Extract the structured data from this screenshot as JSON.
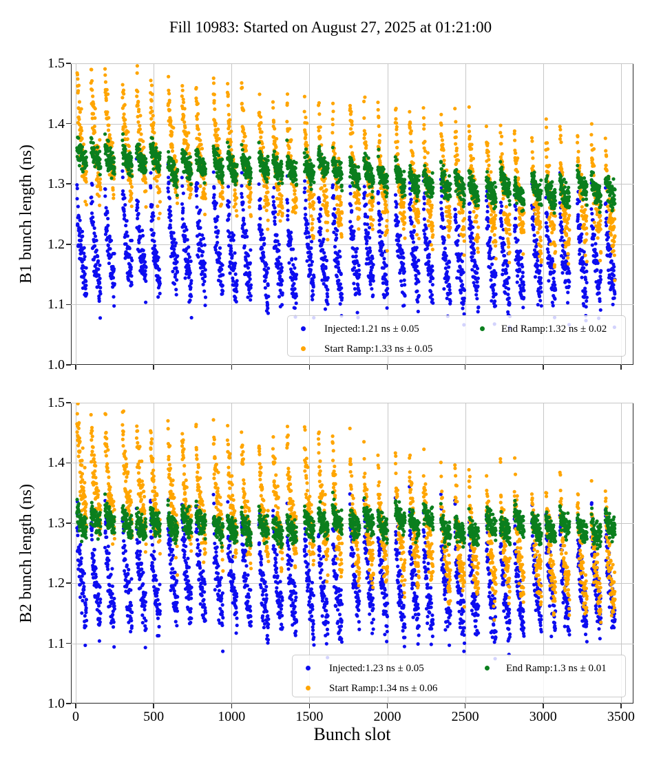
{
  "title": "Fill 10983: Started on August 27, 2025 at 01:21:00",
  "fill": {
    "number": "10983",
    "started": "August 27, 2025 at 01:21:00"
  },
  "chart_data": {
    "type": "scatter",
    "xlabel": "Bunch slot",
    "grid": true,
    "grid_color": "#c6c6c6",
    "spine_color": "#262626",
    "marker": {
      "shape": "dot",
      "radius_px": 2.6
    },
    "bunch_pattern": {
      "first_slot": 8,
      "trains": 12,
      "train_period": 292,
      "batches_per_train": 3,
      "bunches_per_batch": 62,
      "batch_gap": 28,
      "last_slot": 3462
    },
    "plots": [
      {
        "ylabel": "B1 bunch length (ns)",
        "xlim": [
          -31,
          3580
        ],
        "ylim": [
          1.0,
          1.5
        ],
        "xticks": [
          0,
          500,
          1000,
          1500,
          2000,
          2500,
          3000,
          3500
        ],
        "xticklabels": [
          "0",
          "500",
          "1000",
          "1500",
          "2000",
          "2500",
          "3000",
          "3500"
        ],
        "show_xticklabels": false,
        "yticks": [
          1.0,
          1.1,
          1.2,
          1.3,
          1.4,
          1.5
        ],
        "yticklabels": [
          "1.0",
          "1.1",
          "1.2",
          "1.3",
          "1.4",
          "1.5"
        ],
        "legend_position": "lower right",
        "series": [
          {
            "key": "injected",
            "label": "Injected:1.21 ns ± 0.05",
            "color": "#0d0df0",
            "mean_ns": 1.21,
            "std_ns": 0.05,
            "gen": {
              "start": 1.225,
              "end": 1.2,
              "droop": 0.15,
              "sigma": 0.023,
              "seed": 101
            }
          },
          {
            "key": "start_ramp",
            "label": "Start Ramp:1.33 ns ± 0.05",
            "color": "#ffa500",
            "mean_ns": 1.33,
            "std_ns": 0.05,
            "gen": {
              "start": 1.405,
              "end": 1.29,
              "droop": 0.17,
              "sigma": 0.022,
              "seed": 102
            }
          },
          {
            "key": "end_ramp",
            "label": "End Ramp:1.32 ns ± 0.02",
            "color": "#0b7f1e",
            "mean_ns": 1.32,
            "std_ns": 0.02,
            "gen": {
              "start": 1.352,
              "end": 1.297,
              "droop": 0.03,
              "sigma": 0.01,
              "seed": 103
            }
          }
        ]
      },
      {
        "ylabel": "B2 bunch length (ns)",
        "xlim": [
          -31,
          3580
        ],
        "ylim": [
          1.0,
          1.5
        ],
        "xticks": [
          0,
          500,
          1000,
          1500,
          2000,
          2500,
          3000,
          3500
        ],
        "xticklabels": [
          "0",
          "500",
          "1000",
          "1500",
          "2000",
          "2500",
          "3000",
          "3500"
        ],
        "show_xticklabels": true,
        "yticks": [
          1.0,
          1.1,
          1.2,
          1.3,
          1.4,
          1.5
        ],
        "yticklabels": [
          "1.0",
          "1.1",
          "1.2",
          "1.3",
          "1.4",
          "1.5"
        ],
        "legend_position": "lower right",
        "series": [
          {
            "key": "injected",
            "label": "Injected:1.23 ns ± 0.05",
            "color": "#0d0df0",
            "mean_ns": 1.23,
            "std_ns": 0.05,
            "gen": {
              "start": 1.245,
              "end": 1.225,
              "droop": 0.16,
              "sigma": 0.023,
              "seed": 201
            }
          },
          {
            "key": "start_ramp",
            "label": "Start Ramp:1.34 ns ± 0.06",
            "color": "#ffa500",
            "mean_ns": 1.34,
            "std_ns": 0.06,
            "gen": {
              "start": 1.415,
              "end": 1.255,
              "droop": 0.17,
              "sigma": 0.023,
              "seed": 202
            }
          },
          {
            "key": "end_ramp",
            "label": "End Ramp:1.3 ns ± 0.01",
            "color": "#0b7f1e",
            "mean_ns": 1.3,
            "std_ns": 0.01,
            "gen": {
              "start": 1.302,
              "end": 1.296,
              "droop": 0.025,
              "sigma": 0.01,
              "seed": 203
            }
          }
        ]
      }
    ]
  }
}
